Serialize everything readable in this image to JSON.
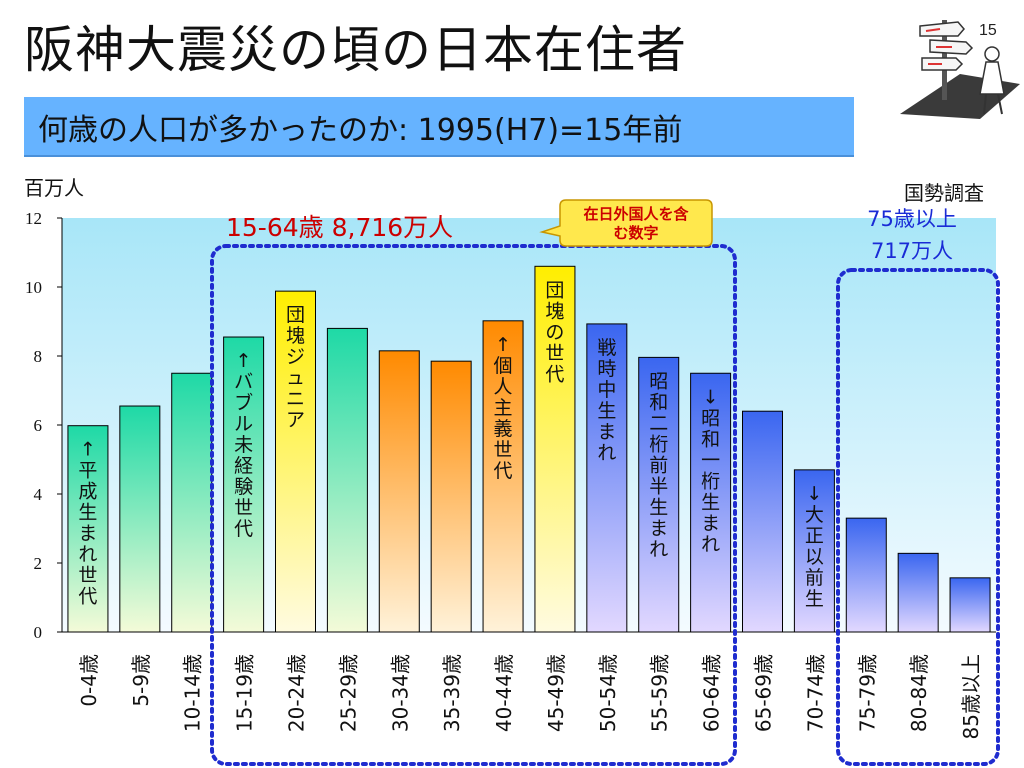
{
  "title": "阪神大震災の頃の日本在住者",
  "slide_number": "15",
  "subtitle": "何歳の人口が多かったのか: 1995(H7)=15年前",
  "unit_label": "百万人",
  "source_label": "国勢調査",
  "colors": {
    "subtitle_bg": "#66b3ff",
    "plot_bg_top": "#a8e6f8",
    "green": "#1ed9a6",
    "yellow": "#ffee00",
    "orange": "#ff8a00",
    "blue": "#3a66f0",
    "dotted_border": "#1f2ccf",
    "red_text": "#cc0000",
    "blue_text": "#1a2bd6",
    "callout_bg": "#ffe84d"
  },
  "callout": {
    "line1": "在日外国人を含",
    "line2": "む数字"
  },
  "annotations": {
    "working_age": "15-64歳 8,716万人",
    "elderly_line1": "75歳以上",
    "elderly_line2": "717万人"
  },
  "chart_data": {
    "type": "bar",
    "ylabel": "百万人",
    "ylim": [
      0,
      12
    ],
    "yticks": [
      0,
      2,
      4,
      6,
      8,
      10,
      12
    ],
    "grid": false,
    "categories": [
      "0-4歳",
      "5-9歳",
      "10-14歳",
      "15-19歳",
      "20-24歳",
      "25-29歳",
      "30-34歳",
      "35-39歳",
      "40-44歳",
      "45-49歳",
      "50-54歳",
      "55-59歳",
      "60-64歳",
      "65-69歳",
      "70-74歳",
      "75-79歳",
      "80-84歳",
      "85歳以上"
    ],
    "values": [
      5.98,
      6.55,
      7.5,
      8.55,
      9.88,
      8.8,
      8.15,
      7.85,
      9.02,
      10.6,
      8.93,
      7.96,
      7.5,
      6.4,
      4.7,
      3.3,
      2.28,
      1.57
    ],
    "bar_colors": [
      "green",
      "green",
      "green",
      "green",
      "yellow",
      "green",
      "orange",
      "orange",
      "orange",
      "yellow",
      "blue",
      "blue",
      "blue",
      "blue",
      "blue",
      "blue",
      "blue",
      "blue"
    ],
    "bar_labels": [
      "↑平成生まれ世代",
      "",
      "",
      "↑バブル未経験世代",
      "団塊ジュニア",
      "",
      "",
      "",
      "↑個人主義世代",
      "団塊の世代",
      "戦時中生まれ",
      "昭和二桁前半生まれ",
      "↓昭和一桁生まれ",
      "",
      "↓大正以前生",
      "",
      "",
      ""
    ]
  }
}
